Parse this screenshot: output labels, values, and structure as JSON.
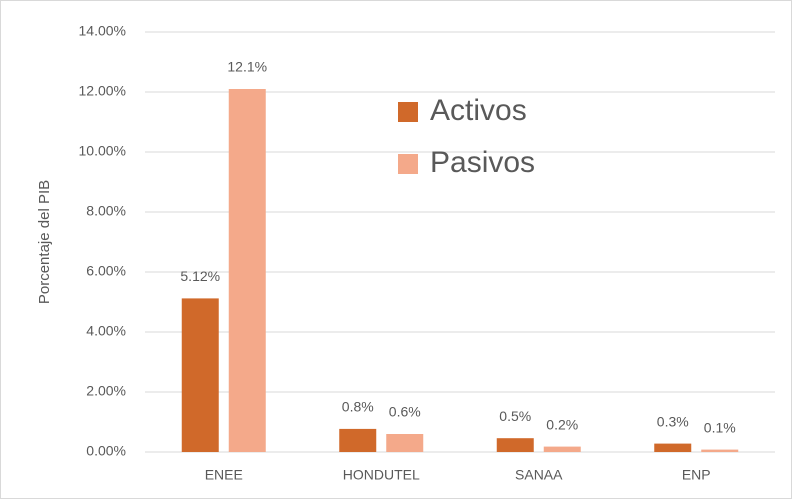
{
  "chart_data": {
    "type": "bar",
    "y_label": "Porcentaje del PIB",
    "categories": [
      "ENEE",
      "HONDUTEL",
      "SANAA",
      "ENP"
    ],
    "series": [
      {
        "name": "Activos",
        "color": "#d0692a",
        "values": [
          5.12,
          0.77,
          0.46,
          0.28
        ],
        "value_labels": [
          "5.12%",
          "0.8%",
          "0.5%",
          "0.3%"
        ]
      },
      {
        "name": "Pasivos",
        "color": "#f4a98a",
        "values": [
          12.1,
          0.6,
          0.18,
          0.08
        ],
        "value_labels": [
          "12.1%",
          "0.6%",
          "0.2%",
          "0.1%"
        ]
      }
    ],
    "ylim": [
      0,
      14
    ],
    "yticks": [
      {
        "value": 0,
        "label": "0.00%"
      },
      {
        "value": 2,
        "label": "2.00%"
      },
      {
        "value": 4,
        "label": "4.00%"
      },
      {
        "value": 6,
        "label": "6.00%"
      },
      {
        "value": 8,
        "label": "8.00%"
      },
      {
        "value": 10,
        "label": "10.00%"
      },
      {
        "value": 12,
        "label": "12.00%"
      },
      {
        "value": 14,
        "label": "14.00%"
      }
    ],
    "grid": true,
    "legend": "top"
  }
}
